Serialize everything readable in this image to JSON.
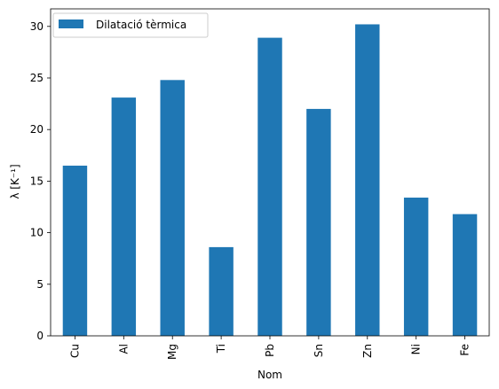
{
  "chart_data": {
    "type": "bar",
    "categories": [
      "Cu",
      "Al",
      "Mg",
      "Ti",
      "Pb",
      "Sn",
      "Zn",
      "Ni",
      "Fe"
    ],
    "series": [
      {
        "name": "Dilatació tèrmica",
        "values": [
          16.5,
          23.1,
          24.8,
          8.6,
          28.9,
          22.0,
          30.2,
          13.4,
          11.8
        ],
        "color": "#1f77b4"
      }
    ],
    "xlabel": "Nom",
    "ylabel": "λ  [K⁻¹]",
    "ylim": [
      0,
      31.7
    ],
    "yticks": [
      0,
      5,
      10,
      15,
      20,
      25,
      30
    ],
    "grid": false,
    "legend_position": "top-left"
  }
}
